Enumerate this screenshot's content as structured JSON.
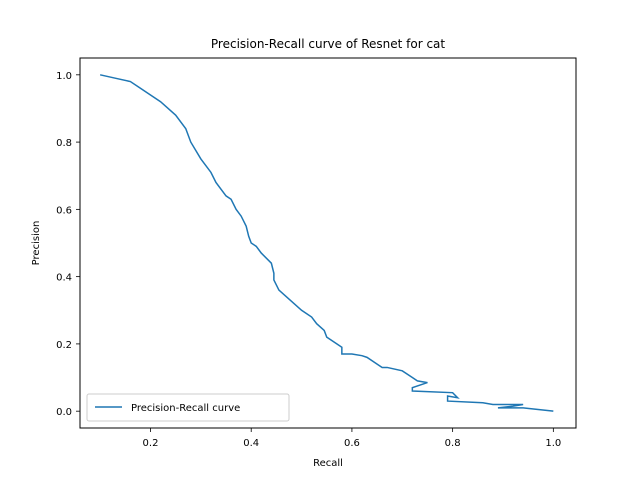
{
  "chart_data": {
    "type": "line",
    "title": "Precision-Recall curve of Resnet for cat",
    "xlabel": "Recall",
    "ylabel": "Precision",
    "xlim": [
      0.06,
      1.045
    ],
    "ylim": [
      -0.05,
      1.05
    ],
    "xticks": [
      0.2,
      0.4,
      0.6,
      0.8,
      1.0
    ],
    "xtick_labels": [
      "0.2",
      "0.4",
      "0.6",
      "0.8",
      "1.0"
    ],
    "yticks": [
      0.0,
      0.2,
      0.4,
      0.6,
      0.8,
      1.0
    ],
    "ytick_labels": [
      "0.0",
      "0.2",
      "0.4",
      "0.6",
      "0.8",
      "1.0"
    ],
    "grid": false,
    "legend_position": "lower-left",
    "series": [
      {
        "name": "Precision-Recall curve",
        "color": "#1f77b4",
        "x": [
          0.1,
          0.13,
          0.16,
          0.18,
          0.2,
          0.22,
          0.25,
          0.27,
          0.28,
          0.3,
          0.32,
          0.33,
          0.35,
          0.36,
          0.37,
          0.38,
          0.39,
          0.395,
          0.4,
          0.41,
          0.42,
          0.44,
          0.445,
          0.445,
          0.455,
          0.47,
          0.5,
          0.52,
          0.53,
          0.545,
          0.55,
          0.57,
          0.58,
          0.58,
          0.6,
          0.62,
          0.63,
          0.65,
          0.66,
          0.67,
          0.7,
          0.72,
          0.73,
          0.75,
          0.72,
          0.72,
          0.8,
          0.81,
          0.79,
          0.79,
          0.86,
          0.88,
          0.94,
          0.92,
          0.89,
          0.94,
          1.0
        ],
        "y": [
          1.0,
          0.99,
          0.98,
          0.96,
          0.94,
          0.92,
          0.88,
          0.84,
          0.8,
          0.75,
          0.71,
          0.68,
          0.64,
          0.63,
          0.6,
          0.58,
          0.55,
          0.52,
          0.5,
          0.49,
          0.47,
          0.44,
          0.41,
          0.39,
          0.36,
          0.34,
          0.3,
          0.28,
          0.26,
          0.24,
          0.22,
          0.2,
          0.19,
          0.17,
          0.17,
          0.165,
          0.16,
          0.14,
          0.13,
          0.13,
          0.12,
          0.1,
          0.09,
          0.085,
          0.07,
          0.06,
          0.055,
          0.04,
          0.045,
          0.03,
          0.025,
          0.02,
          0.02,
          0.015,
          0.01,
          0.01,
          0.0
        ]
      }
    ]
  }
}
